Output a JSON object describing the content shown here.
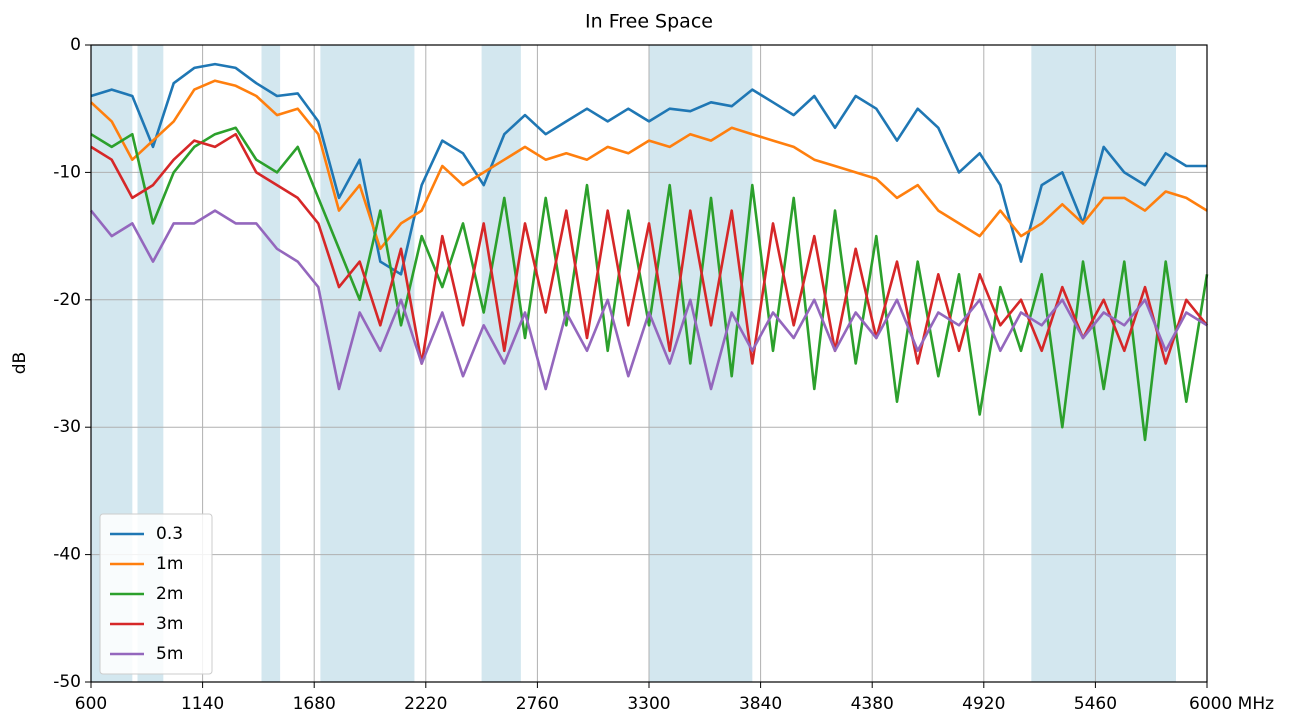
{
  "chart_data": {
    "type": "line",
    "title": "In Free Space",
    "ylabel": "dB",
    "xlim": [
      600,
      6000
    ],
    "ylim": [
      -50,
      0
    ],
    "xticks": [
      600,
      1140,
      1680,
      2220,
      2760,
      3300,
      3840,
      4380,
      4920,
      5460,
      {
        "value": 6000,
        "label": "6000 MHz"
      }
    ],
    "yticks": [
      0,
      -10,
      -20,
      -30,
      -40,
      -50
    ],
    "grid": true,
    "legend": "lower left",
    "bands": [
      [
        600,
        800
      ],
      [
        825,
        950
      ],
      [
        1425,
        1515
      ],
      [
        1710,
        2165
      ],
      [
        2490,
        2680
      ],
      [
        3300,
        3800
      ],
      [
        5150,
        5850
      ]
    ],
    "band_color": "#d3e7ef",
    "x": [
      600,
      700,
      800,
      900,
      1000,
      1100,
      1200,
      1300,
      1400,
      1500,
      1600,
      1700,
      1800,
      1900,
      2000,
      2100,
      2200,
      2300,
      2400,
      2500,
      2600,
      2700,
      2800,
      2900,
      3000,
      3100,
      3200,
      3300,
      3400,
      3500,
      3600,
      3700,
      3800,
      3900,
      4000,
      4100,
      4200,
      4300,
      4400,
      4500,
      4600,
      4700,
      4800,
      4900,
      5000,
      5100,
      5200,
      5300,
      5400,
      5500,
      5600,
      5700,
      5800,
      5900,
      6000
    ],
    "series": [
      {
        "name": "0.3",
        "color": "#1f77b4",
        "values": [
          -4,
          -3.5,
          -4,
          -8,
          -3,
          -1.8,
          -1.5,
          -1.8,
          -3,
          -4,
          -3.8,
          -6,
          -12,
          -9,
          -17,
          -18,
          -11,
          -7.5,
          -8.5,
          -11,
          -7,
          -5.5,
          -7,
          -6,
          -5,
          -6,
          -5,
          -6,
          -5,
          -5.2,
          -4.5,
          -4.8,
          -3.5,
          -4.5,
          -5.5,
          -4,
          -6.5,
          -4,
          -5,
          -7.5,
          -5,
          -6.5,
          -10,
          -8.5,
          -11,
          -17,
          -11,
          -10,
          -14,
          -8,
          -10,
          -11,
          -8.5,
          -9.5,
          -9.5
        ]
      },
      {
        "name": "1m",
        "color": "#ff7f0e",
        "values": [
          -4.5,
          -6,
          -9,
          -7.5,
          -6,
          -3.5,
          -2.8,
          -3.2,
          -4,
          -5.5,
          -5,
          -7,
          -13,
          -11,
          -16,
          -14,
          -13,
          -9.5,
          -11,
          -10,
          -9,
          -8,
          -9,
          -8.5,
          -9,
          -8,
          -8.5,
          -7.5,
          -8,
          -7,
          -7.5,
          -6.5,
          -7,
          -7.5,
          -8,
          -9,
          -9.5,
          -10,
          -10.5,
          -12,
          -11,
          -13,
          -14,
          -15,
          -13,
          -15,
          -14,
          -12.5,
          -14,
          -12,
          -12,
          -13,
          -11.5,
          -12,
          -13
        ]
      },
      {
        "name": "2m",
        "color": "#2ca02c",
        "values": [
          -7,
          -8,
          -7,
          -14,
          -10,
          -8,
          -7,
          -6.5,
          -9,
          -10,
          -8,
          -12,
          -16,
          -20,
          -13,
          -22,
          -15,
          -19,
          -14,
          -21,
          -12,
          -23,
          -12,
          -22,
          -11,
          -24,
          -13,
          -22,
          -11,
          -25,
          -12,
          -26,
          -11,
          -24,
          -12,
          -27,
          -13,
          -25,
          -15,
          -28,
          -17,
          -26,
          -18,
          -29,
          -19,
          -24,
          -18,
          -30,
          -17,
          -27,
          -17,
          -31,
          -17,
          -28,
          -18
        ]
      },
      {
        "name": "3m",
        "color": "#d62728",
        "values": [
          -8,
          -9,
          -12,
          -11,
          -9,
          -7.5,
          -8,
          -7,
          -10,
          -11,
          -12,
          -14,
          -19,
          -17,
          -22,
          -16,
          -25,
          -15,
          -22,
          -14,
          -24,
          -14,
          -21,
          -13,
          -23,
          -13,
          -22,
          -14,
          -24,
          -13,
          -22,
          -13,
          -25,
          -14,
          -22,
          -15,
          -24,
          -16,
          -23,
          -17,
          -25,
          -18,
          -24,
          -18,
          -22,
          -20,
          -24,
          -19,
          -23,
          -20,
          -24,
          -19,
          -25,
          -20,
          -22
        ]
      },
      {
        "name": "5m",
        "color": "#9467bd",
        "values": [
          -13,
          -15,
          -14,
          -17,
          -14,
          -14,
          -13,
          -14,
          -14,
          -16,
          -17,
          -19,
          -27,
          -21,
          -24,
          -20,
          -25,
          -21,
          -26,
          -22,
          -25,
          -21,
          -27,
          -21,
          -24,
          -20,
          -26,
          -21,
          -25,
          -20,
          -27,
          -21,
          -24,
          -21,
          -23,
          -20,
          -24,
          -21,
          -23,
          -20,
          -24,
          -21,
          -22,
          -20,
          -24,
          -21,
          -22,
          -20,
          -23,
          -21,
          -22,
          -20,
          -24,
          -21,
          -22
        ]
      }
    ]
  }
}
